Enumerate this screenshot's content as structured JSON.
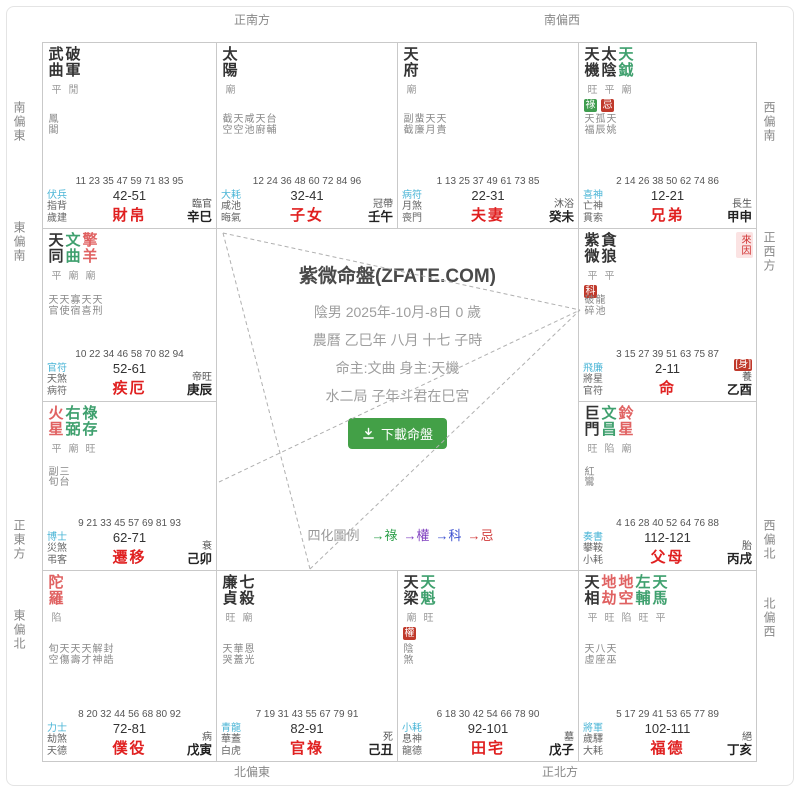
{
  "center": {
    "title": "紫微命盤(ZFATE.COM)",
    "info_lines": [
      "陰男 2025年-10月-8日 0 歲",
      "農曆 乙巳年 八月 十七 子時",
      "命主:文曲 身主:天機",
      "水二局 子年斗君在巳宮"
    ],
    "download_label": "下載命盤",
    "legend": {
      "label": "四化圖例",
      "items": [
        {
          "text": "→祿",
          "color": "#2fa04c"
        },
        {
          "text": "→權",
          "color": "#8040c0"
        },
        {
          "text": "→科",
          "color": "#3c50d0"
        },
        {
          "text": "→忌",
          "color": "#d03a3a"
        }
      ]
    }
  },
  "edges": {
    "top": [
      "正南方",
      "南偏西"
    ],
    "bottom": [
      "北偏東",
      "正北方"
    ],
    "left": [
      "南偏東",
      "東偏南",
      "正東方",
      "東偏北"
    ],
    "right": [
      "西偏南",
      "正西方",
      "西偏北",
      "北偏西"
    ]
  },
  "colors": {
    "main_star": "#333333",
    "lucky_star": "#3fa06e",
    "malefic_star": "#e06262",
    "palace_name": "#e02020",
    "blue_god": "#4ab5d6",
    "badge_green": "#3f9d4f",
    "badge_red": "#c0392b",
    "pink_badge_bg": "#fbe3e3",
    "pink_badge_text": "#d03030"
  },
  "palaces": [
    {
      "id": "cai-bo",
      "row": 1,
      "col": 1,
      "stars": [
        {
          "n": "武曲",
          "c": "main"
        },
        {
          "n": "破軍",
          "c": "main"
        }
      ],
      "bright": [
        "平",
        "閒"
      ],
      "badges": [],
      "minors": [
        "鳳閣"
      ],
      "ages": "11 23 35 47 59 71 83 95",
      "decade": "42-51",
      "palace": "財帛",
      "left": [
        "伏兵",
        "指背",
        "歲建"
      ],
      "right_stage": "臨官",
      "right_gz": "辛巳"
    },
    {
      "id": "zi-nv",
      "row": 1,
      "col": 2,
      "stars": [
        {
          "n": "太陽",
          "c": "main"
        }
      ],
      "bright": [
        "廟"
      ],
      "badges": [],
      "minors": [
        "截空",
        "天空",
        "咸池",
        "天廚",
        "台輔"
      ],
      "ages": "12 24 36 48 60 72 84 96",
      "decade": "32-41",
      "palace": "子女",
      "left": [
        "大耗",
        "咸池",
        "晦氣"
      ],
      "right_stage": "冠帶",
      "right_gz": "壬午"
    },
    {
      "id": "fu-qi",
      "row": 1,
      "col": 3,
      "stars": [
        {
          "n": "天府",
          "c": "main"
        }
      ],
      "bright": [
        "廟"
      ],
      "badges": [],
      "minors": [
        "副截",
        "蜚廉",
        "天月",
        "天貴"
      ],
      "ages": "1 13 25 37 49 61 73 85",
      "decade": "22-31",
      "palace": "夫妻",
      "left": [
        "病符",
        "月煞",
        "喪門"
      ],
      "right_stage": "沐浴",
      "right_gz": "癸未"
    },
    {
      "id": "xiong-di",
      "row": 1,
      "col": 4,
      "stars": [
        {
          "n": "天機",
          "c": "main"
        },
        {
          "n": "太陰",
          "c": "main"
        },
        {
          "n": "天鉞",
          "c": "luck"
        }
      ],
      "bright": [
        "旺",
        "平",
        "廟"
      ],
      "badges": [
        {
          "t": "祿",
          "bg": "green"
        },
        {
          "t": "忌",
          "bg": "red"
        }
      ],
      "minors": [
        "天福",
        "孤辰",
        "天姚"
      ],
      "ages": "2 14 26 38 50 62 74 86",
      "decade": "12-21",
      "palace": "兄弟",
      "left": [
        "喜神",
        "亡神",
        "貫索"
      ],
      "right_stage": "長生",
      "right_gz": "甲申"
    },
    {
      "id": "ji-e",
      "row": 2,
      "col": 1,
      "stars": [
        {
          "n": "天同",
          "c": "main"
        },
        {
          "n": "文曲",
          "c": "luck"
        },
        {
          "n": "擎羊",
          "c": "bad"
        }
      ],
      "bright": [
        "平",
        "廟",
        "廟"
      ],
      "badges": [],
      "minors": [
        "天官",
        "天使",
        "寡宿",
        "天喜",
        "天刑"
      ],
      "ages": "10 22 34 46 58 70 82 94",
      "decade": "52-61",
      "palace": "疾厄",
      "left": [
        "官符",
        "天煞",
        "病符"
      ],
      "right_stage": "帝旺",
      "right_gz": "庚辰"
    },
    {
      "id": "ming",
      "row": 2,
      "col": 4,
      "stars": [
        {
          "n": "紫微",
          "c": "main"
        },
        {
          "n": "貪狼",
          "c": "main"
        }
      ],
      "bright": [
        "平",
        "平"
      ],
      "badges": [
        {
          "t": "科",
          "bg": "red"
        }
      ],
      "corner": "來因",
      "minors": [
        "破碎",
        "龍池"
      ],
      "ages": "3 15 27 39 51 63 75 87",
      "decade": "2-11",
      "palace": "命",
      "left": [
        "飛廉",
        "將星",
        "官符"
      ],
      "right_badge": "[身]",
      "right_stage": "養",
      "right_gz": "乙酉"
    },
    {
      "id": "qian-yi",
      "row": 3,
      "col": 1,
      "stars": [
        {
          "n": "火星",
          "c": "bad"
        },
        {
          "n": "右弼",
          "c": "luck"
        },
        {
          "n": "祿存",
          "c": "luck"
        }
      ],
      "bright": [
        "平",
        "廟",
        "旺"
      ],
      "badges": [],
      "minors": [
        "副旬",
        "三台"
      ],
      "ages": "9 21 33 45 57 69 81 93",
      "decade": "62-71",
      "palace": "遷移",
      "left": [
        "博士",
        "災煞",
        "弔客"
      ],
      "right_stage": "衰",
      "right_gz": "己卯"
    },
    {
      "id": "fu-mu",
      "row": 3,
      "col": 4,
      "stars": [
        {
          "n": "巨門",
          "c": "main"
        },
        {
          "n": "文昌",
          "c": "luck"
        },
        {
          "n": "鈴星",
          "c": "bad"
        }
      ],
      "bright": [
        "旺",
        "陷",
        "廟"
      ],
      "badges": [],
      "minors": [
        "紅鸞"
      ],
      "ages": "4 16 28 40 52 64 76 88",
      "decade": "112-121",
      "palace": "父母",
      "left": [
        "奏書",
        "攀鞍",
        "小耗"
      ],
      "right_stage": "胎",
      "right_gz": "丙戌"
    },
    {
      "id": "pu-yi",
      "row": 4,
      "col": 1,
      "stars": [
        {
          "n": "陀羅",
          "c": "bad"
        }
      ],
      "bright": [
        "陷"
      ],
      "badges": [],
      "minors": [
        "旬空",
        "天傷",
        "天壽",
        "天才",
        "解神",
        "封誥"
      ],
      "ages": "8 20 32 44 56 68 80 92",
      "decade": "72-81",
      "palace": "僕役",
      "left": [
        "力士",
        "劫煞",
        "天德"
      ],
      "right_stage": "病",
      "right_gz": "戊寅"
    },
    {
      "id": "guan-lu",
      "row": 4,
      "col": 2,
      "stars": [
        {
          "n": "廉貞",
          "c": "main"
        },
        {
          "n": "七殺",
          "c": "main"
        }
      ],
      "bright": [
        "旺",
        "廟"
      ],
      "badges": [],
      "minors": [
        "天哭",
        "華蓋",
        "恩光"
      ],
      "ages": "7 19 31 43 55 67 79 91",
      "decade": "82-91",
      "palace": "官祿",
      "left": [
        "青龍",
        "華蓋",
        "白虎"
      ],
      "right_stage": "死",
      "right_gz": "己丑"
    },
    {
      "id": "tian-zhai",
      "row": 4,
      "col": 3,
      "stars": [
        {
          "n": "天梁",
          "c": "main"
        },
        {
          "n": "天魁",
          "c": "luck"
        }
      ],
      "bright": [
        "廟",
        "旺"
      ],
      "badges": [
        {
          "t": "權",
          "bg": "red"
        }
      ],
      "minors": [
        "陰煞"
      ],
      "ages": "6 18 30 42 54 66 78 90",
      "decade": "92-101",
      "palace": "田宅",
      "left": [
        "小耗",
        "息神",
        "龍德"
      ],
      "right_stage": "墓",
      "right_gz": "戊子"
    },
    {
      "id": "fu-de",
      "row": 4,
      "col": 4,
      "stars": [
        {
          "n": "天相",
          "c": "main"
        },
        {
          "n": "地劫",
          "c": "bad"
        },
        {
          "n": "地空",
          "c": "bad"
        },
        {
          "n": "左輔",
          "c": "luck"
        },
        {
          "n": "天馬",
          "c": "luck"
        }
      ],
      "bright": [
        "平",
        "旺",
        "陷",
        "旺",
        "平"
      ],
      "badges": [],
      "minors": [
        "天虛",
        "八座",
        "天巫"
      ],
      "ages": "5 17 29 41 53 65 77 89",
      "decade": "102-111",
      "palace": "福德",
      "left": [
        "將軍",
        "歲驛",
        "大耗"
      ],
      "right_stage": "絕",
      "right_gz": "丁亥"
    }
  ]
}
